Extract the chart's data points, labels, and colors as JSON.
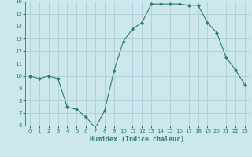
{
  "x": [
    0,
    1,
    2,
    3,
    4,
    5,
    6,
    7,
    8,
    9,
    10,
    11,
    12,
    13,
    14,
    15,
    16,
    17,
    18,
    19,
    20,
    21,
    22,
    23
  ],
  "y": [
    10.0,
    9.8,
    10.0,
    9.8,
    7.5,
    7.3,
    6.7,
    5.8,
    7.2,
    10.4,
    12.8,
    13.8,
    14.3,
    15.8,
    15.8,
    15.8,
    15.8,
    15.7,
    15.7,
    14.3,
    13.5,
    11.5,
    10.5,
    9.3
  ],
  "line_color": "#2d7d6e",
  "marker": "D",
  "marker_size": 2.0,
  "bg_color": "#cce8ee",
  "grid_color": "#aac8d0",
  "tick_color": "#2d7d6e",
  "label_color": "#2d7d6e",
  "xlabel": "Humidex (Indice chaleur)",
  "ylim": [
    6,
    16
  ],
  "xlim": [
    -0.5,
    23.5
  ],
  "yticks": [
    6,
    7,
    8,
    9,
    10,
    11,
    12,
    13,
    14,
    15,
    16
  ],
  "xticks": [
    0,
    1,
    2,
    3,
    4,
    5,
    6,
    7,
    8,
    9,
    10,
    11,
    12,
    13,
    14,
    15,
    16,
    17,
    18,
    19,
    20,
    21,
    22,
    23
  ],
  "tick_fontsize": 5.0,
  "xlabel_fontsize": 6.0
}
